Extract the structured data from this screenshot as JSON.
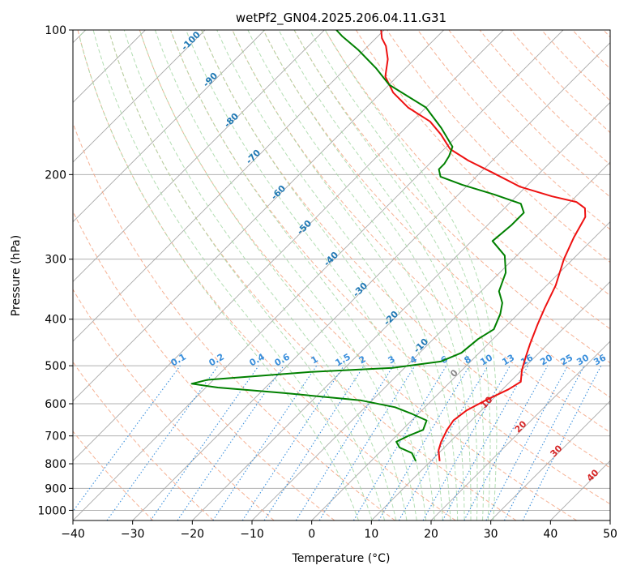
{
  "chart_data": {
    "type": "line",
    "title": "wetPf2_GN04.2025.206.04.11.G31",
    "xlabel": "Temperature (°C)",
    "ylabel": "Pressure (hPa)",
    "xlim": [
      -40,
      50
    ],
    "ylim": [
      1050,
      100
    ],
    "y_scale": "log",
    "x_ticks": [
      -40,
      -30,
      -20,
      -10,
      0,
      10,
      20,
      30,
      40,
      50
    ],
    "y_ticks": [
      100,
      200,
      300,
      400,
      500,
      600,
      700,
      800,
      900,
      1000
    ],
    "grid": true,
    "skew": 45,
    "colors": {
      "temperature": "#ee1111",
      "dewpoint": "#008000",
      "dry_adiabat": "#f4a582",
      "moist_adiabat": "#a6d8a6",
      "mixing_ratio": "#3a8fdc",
      "isotherm": "#888888"
    },
    "series": [
      {
        "points": [
          [
            11.5,
            790
          ],
          [
            9.5,
            750
          ],
          [
            8.5,
            720
          ],
          [
            7.5,
            680
          ],
          [
            7.0,
            650
          ],
          [
            7.5,
            620
          ],
          [
            9.0,
            590
          ],
          [
            11.0,
            560
          ],
          [
            11.8,
            540
          ],
          [
            10.0,
            510
          ],
          [
            8.5,
            480
          ],
          [
            7.0,
            450
          ],
          [
            5.0,
            410
          ],
          [
            3.5,
            380
          ],
          [
            1.5,
            340
          ],
          [
            -1.5,
            300
          ],
          [
            -3.5,
            270
          ],
          [
            -5.0,
            245
          ],
          [
            -6.5,
            235
          ],
          [
            -9.0,
            228
          ],
          [
            -14.0,
            222
          ],
          [
            -21.0,
            212
          ],
          [
            -28.0,
            198
          ],
          [
            -34.0,
            187
          ],
          [
            -39.0,
            177
          ],
          [
            -43.0,
            165
          ],
          [
            -47.0,
            155
          ],
          [
            -53.0,
            145
          ],
          [
            -58.0,
            135
          ],
          [
            -62.0,
            125
          ],
          [
            -64.5,
            115
          ],
          [
            -67.0,
            108
          ],
          [
            -69.0,
            104
          ],
          [
            -70.5,
            100
          ]
        ]
      },
      {
        "points": [
          [
            7.5,
            790
          ],
          [
            5.5,
            760
          ],
          [
            2.5,
            740
          ],
          [
            1.0,
            720
          ],
          [
            2.0,
            700
          ],
          [
            3.5,
            680
          ],
          [
            2.5,
            650
          ],
          [
            -1.0,
            630
          ],
          [
            -5.0,
            610
          ],
          [
            -12.0,
            590
          ],
          [
            -26.0,
            570
          ],
          [
            -38.0,
            555
          ],
          [
            -43.0,
            545
          ],
          [
            -41.0,
            535
          ],
          [
            -25.0,
            515
          ],
          [
            -12.0,
            505
          ],
          [
            -5.0,
            490
          ],
          [
            -3.0,
            470
          ],
          [
            -2.5,
            440
          ],
          [
            -1.5,
            420
          ],
          [
            -3.0,
            390
          ],
          [
            -4.5,
            370
          ],
          [
            -7.0,
            350
          ],
          [
            -9.0,
            320
          ],
          [
            -12.0,
            295
          ],
          [
            -16.5,
            275
          ],
          [
            -16.0,
            255
          ],
          [
            -16.0,
            240
          ],
          [
            -18.0,
            230
          ],
          [
            -24.0,
            220
          ],
          [
            -31.0,
            210
          ],
          [
            -36.0,
            202
          ],
          [
            -37.5,
            195
          ],
          [
            -37.5,
            190
          ],
          [
            -38.0,
            183
          ],
          [
            -39.0,
            175
          ],
          [
            -44.0,
            160
          ],
          [
            -50.0,
            145
          ],
          [
            -60.0,
            130
          ],
          [
            -65.0,
            120
          ],
          [
            -71.0,
            110
          ],
          [
            -76.0,
            103
          ],
          [
            -78.0,
            100
          ]
        ]
      }
    ],
    "dry_adiabat_labels": [
      "10",
      "20",
      "30",
      "40"
    ],
    "moist_adiabat_labels": [
      "-100",
      "-90",
      "-80",
      "-70",
      "-60",
      "-50",
      "-40",
      "-30",
      "-20",
      "-10",
      "0"
    ],
    "mixing_ratio_labels": [
      "0.1",
      "0.2",
      "0.4",
      "0.6",
      "1",
      "1.5",
      "2",
      "3",
      "4",
      "6",
      "8",
      "10",
      "13",
      "16",
      "20",
      "25",
      "30",
      "36"
    ]
  }
}
